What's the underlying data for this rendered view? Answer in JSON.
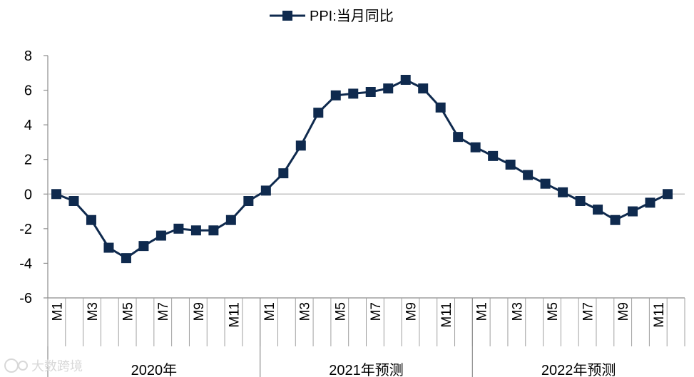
{
  "chart_data": {
    "type": "line",
    "title": "",
    "xlabel": "",
    "ylabel": "",
    "ylim": [
      -6,
      8
    ],
    "yticks": [
      8,
      6,
      4,
      2,
      0,
      -2,
      -4,
      -6
    ],
    "grid": false,
    "legend_position": "top-center",
    "categories": [
      "M1",
      "M2",
      "M3",
      "M4",
      "M5",
      "M6",
      "M7",
      "M8",
      "M9",
      "M10",
      "M11",
      "M12",
      "M1",
      "M2",
      "M3",
      "M4",
      "M5",
      "M6",
      "M7",
      "M8",
      "M9",
      "M10",
      "M11",
      "M12",
      "M1",
      "M2",
      "M3",
      "M4",
      "M5",
      "M6",
      "M7",
      "M8",
      "M9",
      "M10",
      "M11",
      "M12"
    ],
    "tick_labels": [
      "M1",
      "M3",
      "M5",
      "M7",
      "M9",
      "M11",
      "M1",
      "M3",
      "M5",
      "M7",
      "M9",
      "M11",
      "M1",
      "M3",
      "M5",
      "M7",
      "M9",
      "M11"
    ],
    "year_groups": [
      {
        "label": "2020年"
      },
      {
        "label": "2021年预测"
      },
      {
        "label": "2022年预测"
      }
    ],
    "series": [
      {
        "name": "PPI:当月同比",
        "color": "#0f2a4e",
        "marker": "square",
        "values": [
          0.0,
          -0.4,
          -1.5,
          -3.1,
          -3.7,
          -3.0,
          -2.4,
          -2.0,
          -2.1,
          -2.1,
          -1.5,
          -0.4,
          0.2,
          1.2,
          2.8,
          4.7,
          5.7,
          5.8,
          5.9,
          6.1,
          6.6,
          6.1,
          5.0,
          3.3,
          2.7,
          2.2,
          1.7,
          1.1,
          0.6,
          0.1,
          -0.4,
          -0.9,
          -1.5,
          -1.0,
          -0.5,
          0.0
        ]
      }
    ]
  },
  "watermark": {
    "text": "大数跨境"
  }
}
